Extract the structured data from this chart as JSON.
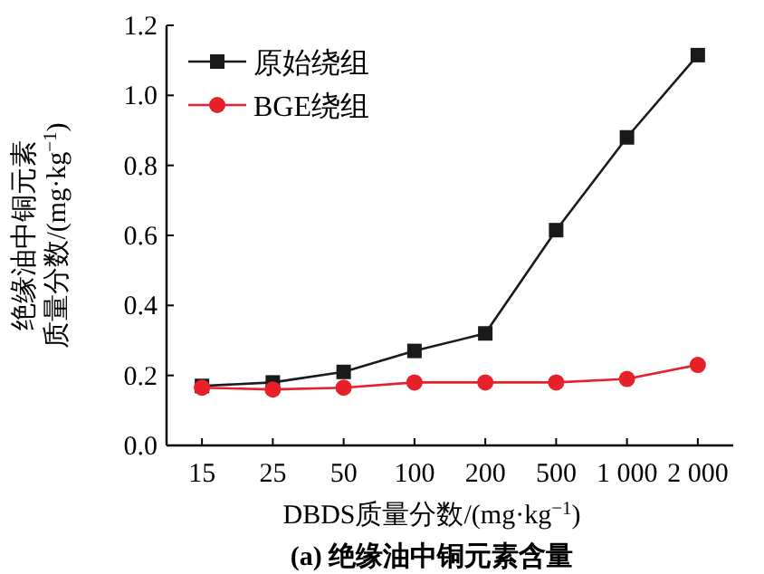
{
  "chart_data": {
    "type": "line",
    "title": "(a) 绝缘油中铜元素含量",
    "xlabel": "DBDS质量分数/(mg·kg$^{−1}$)",
    "ylabel": "绝缘油中铜元素质量分数/(mg·kg$^{−1}$)",
    "categories": [
      "15",
      "25",
      "50",
      "100",
      "200",
      "500",
      "1 000",
      "2 000"
    ],
    "series": [
      {
        "name": "原始绕组",
        "color": "#1a1a1a",
        "marker": "square",
        "values": [
          0.17,
          0.18,
          0.21,
          0.27,
          0.32,
          0.615,
          0.88,
          1.115
        ]
      },
      {
        "name": "BGE绕组",
        "color": "#e8202a",
        "marker": "circle",
        "values": [
          0.165,
          0.16,
          0.165,
          0.18,
          0.18,
          0.18,
          0.19,
          0.23
        ]
      }
    ],
    "ylim": [
      0,
      1.2
    ],
    "yticks": [
      {
        "value": 0,
        "label": "0.0"
      },
      0.2,
      0.4,
      0.6,
      0.8,
      {
        "value": 1,
        "label": "1.0"
      },
      1.2
    ],
    "grid": false,
    "legend": "top left"
  }
}
